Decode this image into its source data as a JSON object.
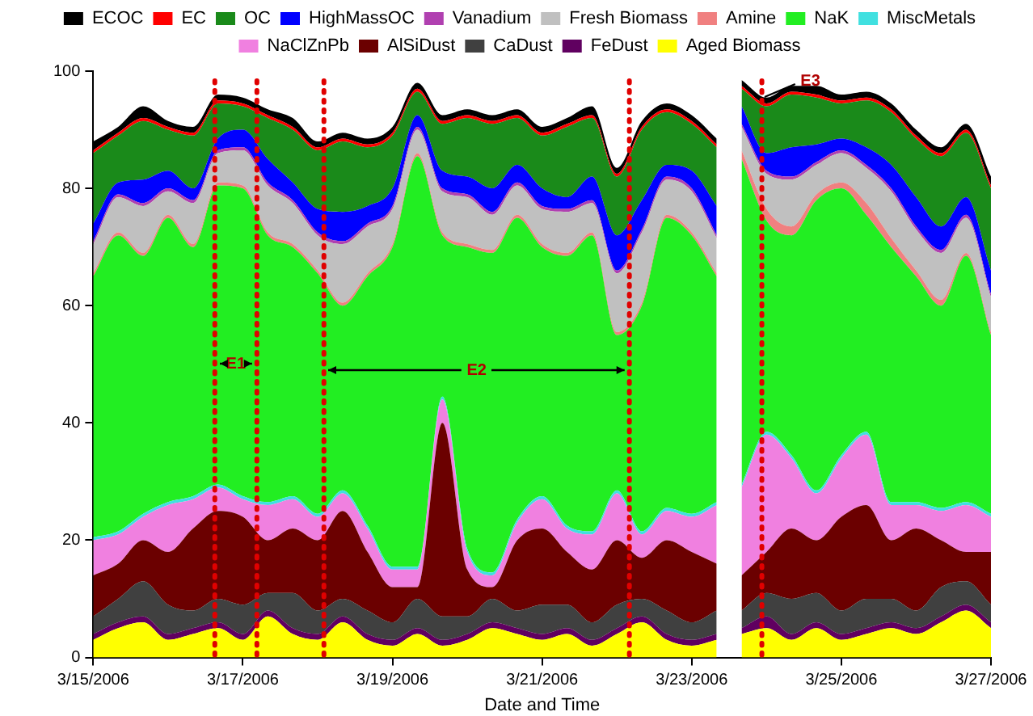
{
  "chart_data": {
    "type": "area",
    "stacked": true,
    "xlabel": "Date and Time",
    "legend": "top",
    "grid": false,
    "marker": "none",
    "x": [
      "2006-03-15T00:00",
      "2006-03-15T08:00",
      "2006-03-15T16:00",
      "2006-03-16T00:00",
      "2006-03-16T08:00",
      "2006-03-16T16:00",
      "2006-03-17T00:00",
      "2006-03-17T08:00",
      "2006-03-17T16:00",
      "2006-03-18T00:00",
      "2006-03-18T08:00",
      "2006-03-18T16:00",
      "2006-03-19T00:00",
      "2006-03-19T08:00",
      "2006-03-19T16:00",
      "2006-03-20T00:00",
      "2006-03-20T08:00",
      "2006-03-20T16:00",
      "2006-03-21T00:00",
      "2006-03-21T08:00",
      "2006-03-21T16:00",
      "2006-03-22T00:00",
      "2006-03-22T08:00",
      "2006-03-22T16:00",
      "2006-03-23T00:00",
      "2006-03-23T08:00",
      "2006-03-23T12:00",
      "2006-03-23T16:00",
      "2006-03-24T00:00",
      "2006-03-24T08:00",
      "2006-03-24T16:00",
      "2006-03-25T00:00",
      "2006-03-25T08:00",
      "2006-03-25T16:00",
      "2006-03-26T00:00",
      "2006-03-26T08:00",
      "2006-03-26T16:00",
      "2006-03-27T00:00"
    ],
    "xlim": [
      "2006-03-15T00:00",
      "2006-03-27T00:00"
    ],
    "xticks": [
      {
        "value": "2006-03-15T00:00",
        "label": "3/15/2006"
      },
      {
        "value": "2006-03-17T00:00",
        "label": "3/17/2006"
      },
      {
        "value": "2006-03-19T00:00",
        "label": "3/19/2006"
      },
      {
        "value": "2006-03-21T00:00",
        "label": "3/21/2006"
      },
      {
        "value": "2006-03-23T00:00",
        "label": "3/23/2006"
      },
      {
        "value": "2006-03-25T00:00",
        "label": "3/25/2006"
      },
      {
        "value": "2006-03-27T00:00",
        "label": "3/27/2006"
      }
    ],
    "ylim": [
      0,
      100
    ],
    "yticks": [
      0,
      20,
      40,
      60,
      80,
      100
    ],
    "series": [
      {
        "name": "Aged Biomass",
        "color": "#ffff00",
        "values": [
          3,
          5,
          6,
          3,
          4,
          5,
          3,
          7,
          4,
          3,
          6,
          3,
          2,
          4,
          2,
          3,
          5,
          4,
          3,
          4,
          2,
          4,
          6,
          3,
          2,
          3,
          null,
          4,
          5,
          3,
          5,
          3,
          4,
          5,
          4,
          6,
          8,
          5
        ]
      },
      {
        "name": "FeDust",
        "color": "#600060",
        "values": [
          1,
          1,
          1,
          1,
          1,
          1,
          1,
          1,
          1,
          1,
          1,
          1,
          1,
          1,
          1,
          1,
          1,
          1,
          1,
          1,
          1,
          1,
          1,
          1,
          1,
          1,
          null,
          1,
          2,
          1,
          1,
          1,
          1,
          1,
          1,
          1,
          1,
          1
        ]
      },
      {
        "name": "CaDust",
        "color": "#404040",
        "values": [
          3,
          4,
          6,
          5,
          3,
          4,
          5,
          3,
          6,
          4,
          3,
          4,
          3,
          5,
          4,
          3,
          4,
          3,
          5,
          4,
          3,
          4,
          3,
          4,
          3,
          4,
          null,
          3,
          4,
          6,
          5,
          4,
          5,
          4,
          3,
          5,
          4,
          3
        ]
      },
      {
        "name": "AlSiDust",
        "color": "#6b0000",
        "values": [
          7,
          6,
          7,
          9,
          14,
          15,
          15,
          9,
          11,
          12,
          15,
          10,
          6,
          2,
          33,
          8,
          2,
          12,
          13,
          9,
          9,
          11,
          7,
          12,
          12,
          8,
          null,
          6,
          7,
          12,
          9,
          16,
          16,
          10,
          14,
          8,
          5,
          9
        ]
      },
      {
        "name": "NaClZnPb",
        "color": "#f080e0",
        "values": [
          6,
          5,
          4,
          8,
          5,
          4,
          3,
          6,
          5,
          4,
          3,
          4,
          3,
          3,
          4,
          3,
          2,
          3,
          5,
          4,
          6,
          8,
          4,
          5,
          6,
          10,
          null,
          15,
          20,
          12,
          8,
          10,
          12,
          6,
          4,
          5,
          8,
          6
        ]
      },
      {
        "name": "MiscMetals",
        "color": "#40e0e0",
        "values": [
          0.5,
          0.5,
          0.5,
          0.5,
          0.5,
          0.5,
          0.5,
          0.5,
          0.5,
          0.5,
          0.5,
          0.5,
          0.5,
          0.5,
          0.5,
          0.5,
          0.5,
          0.5,
          0.5,
          0.5,
          0.5,
          0.5,
          0.5,
          0.5,
          0.5,
          0.5,
          null,
          0.5,
          0.5,
          0.5,
          0.5,
          0.5,
          0.5,
          0.5,
          0.5,
          0.5,
          0.5,
          0.5
        ]
      },
      {
        "name": "NaK",
        "color": "#22ee22",
        "values": [
          44.5,
          50.5,
          44,
          48.5,
          42.5,
          51,
          52.5,
          45.5,
          42.5,
          41,
          31.5,
          42.5,
          54.5,
          70,
          27.5,
          51.5,
          54.5,
          51.5,
          42.5,
          46,
          50.5,
          26.5,
          38.5,
          49.5,
          47.5,
          38.5,
          null,
          55.5,
          36,
          37.5,
          49.5,
          45.5,
          37,
          43.5,
          38.5,
          34.5,
          42,
          30.5
        ]
      },
      {
        "name": "Amine",
        "color": "#f08080",
        "values": [
          0.5,
          0.5,
          0.5,
          0.5,
          0.5,
          0.5,
          0.5,
          0.5,
          0.5,
          0.5,
          0.5,
          0.5,
          0.5,
          0.5,
          0.5,
          0.5,
          0.5,
          0.5,
          0.5,
          0.5,
          0.5,
          0.5,
          0.5,
          0.5,
          0.5,
          0.5,
          null,
          1.5,
          2,
          1.5,
          1,
          1,
          2,
          1.5,
          1,
          1,
          0.5,
          0.5
        ]
      },
      {
        "name": "Fresh Biomass",
        "color": "#c0c0c0",
        "values": [
          5,
          6,
          8,
          4,
          7,
          5,
          6,
          8,
          7,
          6,
          10,
          8,
          6,
          4,
          7,
          8,
          6,
          5,
          6,
          7,
          5,
          10,
          12,
          6,
          7,
          6,
          null,
          4,
          6,
          8,
          5,
          5,
          6,
          8,
          7,
          8,
          6,
          6
        ]
      },
      {
        "name": "Vanadium",
        "color": "#b040b0",
        "values": [
          0.5,
          0.5,
          0.5,
          0.5,
          0.5,
          0.5,
          0.5,
          0.5,
          0.5,
          0.5,
          0.5,
          0.5,
          0.5,
          0.5,
          0.5,
          0.5,
          0.5,
          0.5,
          0.5,
          0.5,
          0.5,
          0.5,
          0.5,
          0.5,
          0.5,
          0.5,
          null,
          0.5,
          0.5,
          0.5,
          0.5,
          0.5,
          0.5,
          0.5,
          0.5,
          0.5,
          0.5,
          0.5
        ]
      },
      {
        "name": "HighMassOC",
        "color": "#0000ff",
        "values": [
          3,
          2,
          4,
          3,
          2,
          2,
          3,
          4,
          3,
          4,
          5,
          3,
          3,
          2,
          3,
          3,
          4,
          3,
          3,
          2,
          4,
          6,
          5,
          2,
          3,
          5,
          null,
          3,
          3,
          5,
          3,
          2,
          3,
          4,
          5,
          4,
          3,
          4
        ]
      },
      {
        "name": "OC",
        "color": "#1a8a1a",
        "values": [
          12,
          8,
          10,
          7,
          9,
          6,
          4,
          7,
          9,
          10,
          12,
          10,
          9,
          4,
          8,
          10,
          11,
          8,
          9,
          12,
          10,
          10,
          12,
          9,
          8,
          10,
          null,
          3,
          8,
          9,
          8,
          6,
          8,
          9,
          10,
          12,
          11,
          14
        ]
      },
      {
        "name": "EC",
        "color": "#ff0000",
        "values": [
          0.5,
          0.5,
          0.5,
          0.5,
          0.5,
          0.5,
          0.5,
          0.5,
          0.5,
          0.5,
          0.5,
          0.5,
          0.5,
          0.5,
          0.5,
          0.5,
          0.5,
          0.5,
          0.5,
          0.5,
          0.5,
          0.5,
          0.5,
          0.5,
          0.5,
          0.5,
          null,
          0.5,
          0.5,
          0.5,
          0.5,
          0.5,
          0.5,
          0.5,
          0.5,
          0.5,
          0.5,
          0.5
        ]
      },
      {
        "name": "ECOC",
        "color": "#000000",
        "values": [
          1.5,
          1,
          2,
          1,
          1,
          1,
          1,
          1,
          1.5,
          1,
          1,
          1,
          1,
          1,
          1,
          1,
          1,
          1,
          1,
          1,
          1.5,
          1,
          1,
          1,
          1,
          1,
          null,
          1,
          1,
          1,
          1.5,
          1,
          1,
          1,
          1,
          1,
          1,
          1.5
        ]
      }
    ],
    "ref_lines": [
      {
        "axis": "x",
        "value": "2006-03-16T15:00",
        "color": "#e00000",
        "line_style": "dotted"
      },
      {
        "axis": "x",
        "value": "2006-03-17T04:30",
        "color": "#e00000",
        "line_style": "dotted"
      },
      {
        "axis": "x",
        "value": "2006-03-18T02:00",
        "color": "#e00000",
        "line_style": "dotted"
      },
      {
        "axis": "x",
        "value": "2006-03-22T04:00",
        "color": "#e00000",
        "line_style": "dotted"
      },
      {
        "axis": "x",
        "value": "2006-03-23T22:30",
        "color": "#e00000",
        "line_style": "dotted"
      }
    ],
    "annotations": [
      "E1",
      {
        "text": "E2",
        "x": "2006-03-22T04:00",
        "y": 49
      },
      "E3"
    ]
  }
}
